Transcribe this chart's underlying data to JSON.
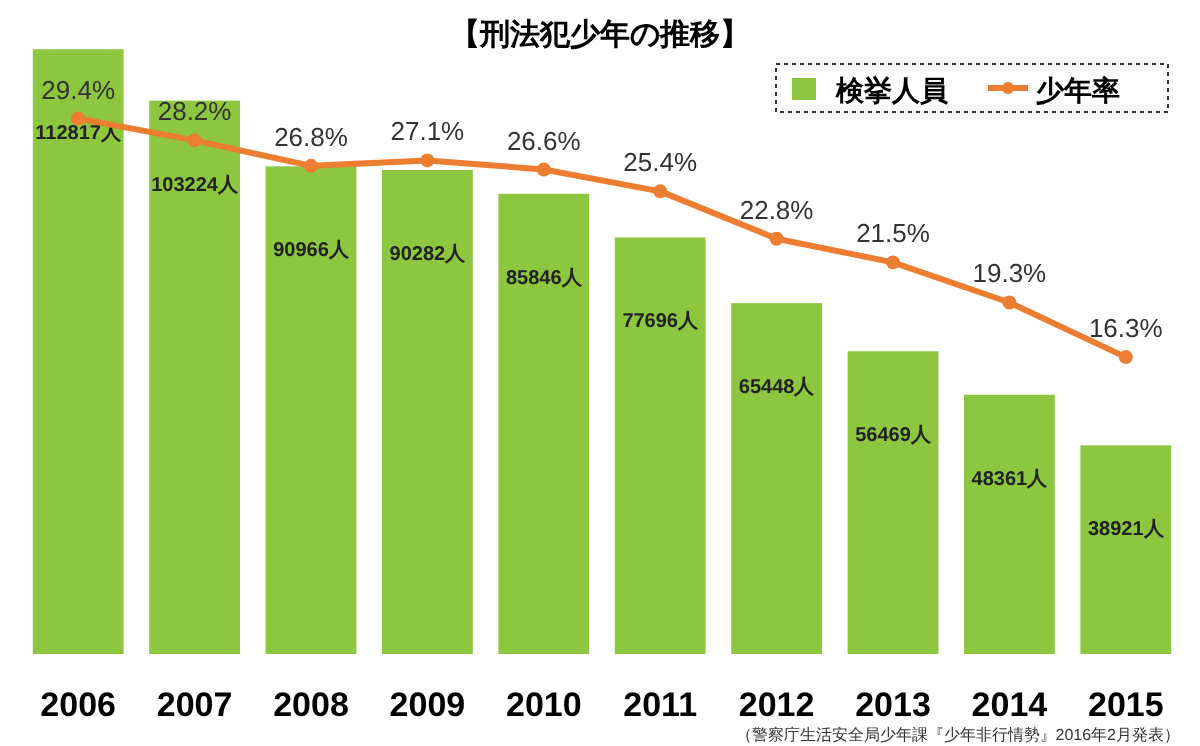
{
  "chart_data": {
    "type": "bar",
    "title": "【刑法犯少年の推移】",
    "categories": [
      "2006",
      "2007",
      "2008",
      "2009",
      "2010",
      "2011",
      "2012",
      "2013",
      "2014",
      "2015"
    ],
    "series": [
      {
        "name": "検挙人員",
        "color": "#8dc63f",
        "values": [
          112817,
          103224,
          90966,
          90282,
          85846,
          77696,
          65448,
          56469,
          48361,
          38921
        ],
        "value_labels": [
          "112817人",
          "103224人",
          "90966人",
          "90282人",
          "85846人",
          "77696人",
          "65448人",
          "56469人",
          "48361人",
          "38921人"
        ]
      },
      {
        "name": "少年率",
        "type": "line",
        "axis": "y2",
        "color": "#ed7d31",
        "marker": "circle",
        "values": [
          29.4,
          28.2,
          26.8,
          27.1,
          26.6,
          25.4,
          22.8,
          21.5,
          19.3,
          16.3
        ],
        "value_labels": [
          "29.4%",
          "28.2%",
          "26.8%",
          "27.1%",
          "26.6%",
          "25.4%",
          "22.8%",
          "21.5%",
          "19.3%",
          "16.3%"
        ]
      }
    ],
    "tick_labels": "x",
    "legend": "top right",
    "annotations": [
      "（警察庁生活安全局少年課『少年非行情勢』2016年2月発表）"
    ]
  }
}
